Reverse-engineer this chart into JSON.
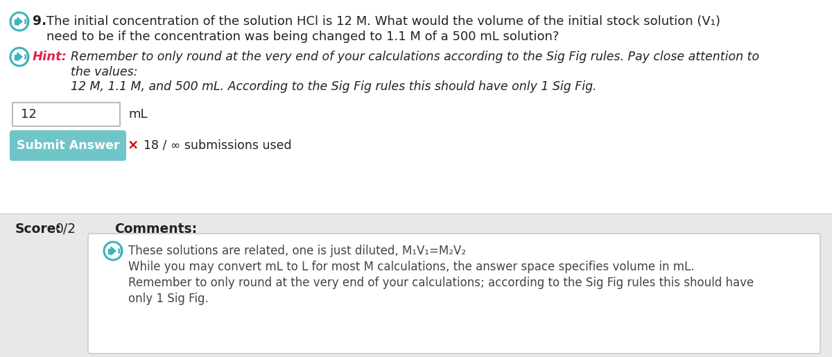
{
  "bg_color": "#ffffff",
  "question_number": "9.",
  "question_line1": " The initial concentration of the solution HCl is 12 M. What would the volume of the initial stock solution (V₁)",
  "question_line2": "need to be if the concentration was being changed to 1.1 M of a 500 mL solution?",
  "hint_label": "Hint:",
  "hint_line1": "Remember to only round at the very end of your calculations according to the Sig Fig rules. Pay close attention to",
  "hint_line2": "the values:",
  "hint_line3": "12 M, 1.1 M, and 500 mL. According to the Sig Fig rules this should have only 1 Sig Fig.",
  "input_value": "12",
  "input_unit": "mL",
  "submit_button_text": "Submit Answer",
  "submit_button_color": "#6ec6c8",
  "submit_button_text_color": "#ffffff",
  "wrong_mark": "×",
  "submissions_text": "18 / ∞ submissions used",
  "score_label": "Score:",
  "score_value": "0/2",
  "comments_label": "Comments:",
  "score_section_bg": "#e8e8e8",
  "comment_box_bg": "#ffffff",
  "comment_line1": "These solutions are related, one is just diluted, M₁V₁=M₂V₂",
  "comment_line2": "While you may convert mL to L for most M calculations, the answer space specifies volume in mL.",
  "comment_line3": "Remember to only round at the very end of your calculations; according to the Sig Fig rules this should have",
  "comment_line4": "only 1 Sig Fig.",
  "speaker_icon_color": "#3ab5b8",
  "hint_color": "#e0234e",
  "question_color": "#222222",
  "normal_text_color": "#444444",
  "wrong_mark_color": "#cc0000",
  "input_border_color": "#bbbbbb",
  "comment_border_color": "#cccccc",
  "divider_color": "#cccccc"
}
